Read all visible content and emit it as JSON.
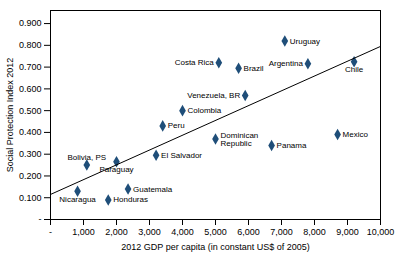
{
  "chart_data": {
    "type": "scatter",
    "xlabel": "2012 GDP per capita (in constant US$ of 2005)",
    "ylabel": "Social Protection Index 2012",
    "series": [
      {
        "type": "scatter",
        "marker": "diamond",
        "color": "#1F4E79",
        "x": [
          820,
          1100,
          1750,
          2000,
          2350,
          3200,
          3400,
          4000,
          5000,
          5100,
          5700,
          5900,
          6700,
          7100,
          7800,
          8700,
          9200
        ],
        "values": [
          0.13,
          0.25,
          0.09,
          0.265,
          0.14,
          0.295,
          0.43,
          0.5,
          0.37,
          0.72,
          0.695,
          0.57,
          0.34,
          0.82,
          0.715,
          0.39,
          0.725
        ]
      },
      {
        "type": "line",
        "line_style": "solid",
        "color": "black",
        "x": [
          0,
          10000
        ],
        "values": [
          0.115,
          0.795
        ]
      }
    ],
    "annotations": [
      {
        "text": "Nicaragua",
        "x": 820,
        "y": 0.13
      },
      {
        "text": "Bolivia, PS",
        "x": 1100,
        "y": 0.25
      },
      {
        "text": "Honduras",
        "x": 1750,
        "y": 0.09
      },
      {
        "text": "Paraguay",
        "x": 2000,
        "y": 0.265
      },
      {
        "text": "Guatemala",
        "x": 2350,
        "y": 0.14
      },
      {
        "text": "El Salvador",
        "x": 3200,
        "y": 0.295
      },
      {
        "text": "Peru",
        "x": 3400,
        "y": 0.43
      },
      {
        "text": "Colombia",
        "x": 4000,
        "y": 0.5
      },
      {
        "text": "Dominican\nRepublic",
        "x": 5000,
        "y": 0.37
      },
      {
        "text": "Costa Rica",
        "x": 5100,
        "y": 0.72
      },
      {
        "text": "Brazil",
        "x": 5700,
        "y": 0.695
      },
      {
        "text": "Venezuela, BR",
        "x": 5900,
        "y": 0.57
      },
      {
        "text": "Panama",
        "x": 6700,
        "y": 0.34
      },
      {
        "text": "Uruguay",
        "x": 7100,
        "y": 0.82
      },
      {
        "text": "Argentina",
        "x": 7800,
        "y": 0.715
      },
      {
        "text": "Mexico",
        "x": 8700,
        "y": 0.39
      },
      {
        "text": "Chile",
        "x": 9200,
        "y": 0.725
      }
    ],
    "xlim": [
      0,
      10000
    ],
    "ylim": [
      0,
      0.96
    ],
    "xticks": [
      {
        "value": 0,
        "label": "-"
      },
      {
        "value": 1000,
        "label": "1,000"
      },
      {
        "value": 2000,
        "label": "2,000"
      },
      {
        "value": 3000,
        "label": "3,000"
      },
      {
        "value": 4000,
        "label": "4,000"
      },
      {
        "value": 5000,
        "label": "5,000"
      },
      {
        "value": 6000,
        "label": "6,000"
      },
      {
        "value": 7000,
        "label": "7,000"
      },
      {
        "value": 8000,
        "label": "8,000"
      },
      {
        "value": 9000,
        "label": "9,000"
      },
      {
        "value": 10000,
        "label": "10,000"
      }
    ],
    "yticks": [
      {
        "value": 0.0,
        "label": "-"
      },
      {
        "value": 0.1,
        "label": "0.100"
      },
      {
        "value": 0.2,
        "label": "0.200"
      },
      {
        "value": 0.3,
        "label": "0.300"
      },
      {
        "value": 0.4,
        "label": "0.400"
      },
      {
        "value": 0.5,
        "label": "0.500"
      },
      {
        "value": 0.6,
        "label": "0.600"
      },
      {
        "value": 0.7,
        "label": "0.700"
      },
      {
        "value": 0.8,
        "label": "0.800"
      },
      {
        "value": 0.9,
        "label": "0.900"
      }
    ],
    "grid": false
  }
}
